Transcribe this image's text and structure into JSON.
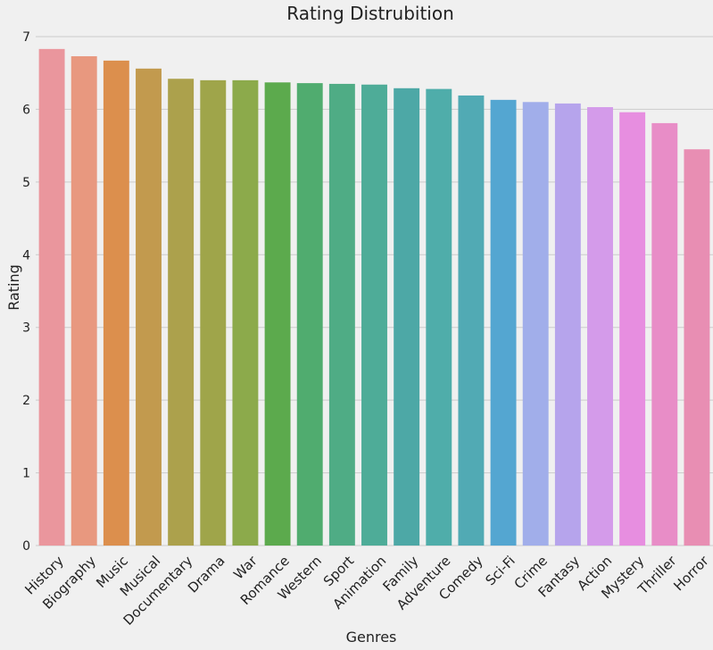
{
  "chart_data": {
    "type": "bar",
    "title": "Rating Distrubition",
    "xlabel": "Genres",
    "ylabel": "Rating",
    "ylim": [
      0,
      7
    ],
    "yticks": [
      "0",
      "1",
      "2",
      "3",
      "4",
      "5",
      "6",
      "7"
    ],
    "grid": true,
    "categories": [
      "History",
      "Biography",
      "Music",
      "Musical",
      "Documentary",
      "Drama",
      "War",
      "Romance",
      "Western",
      "Sport",
      "Animation",
      "Family",
      "Adventure",
      "Comedy",
      "Sci-Fi",
      "Crime",
      "Fantasy",
      "Action",
      "Mystery",
      "Thriller",
      "Horror"
    ],
    "values": [
      6.83,
      6.73,
      6.67,
      6.56,
      6.42,
      6.4,
      6.4,
      6.37,
      6.36,
      6.35,
      6.34,
      6.29,
      6.28,
      6.19,
      6.13,
      6.1,
      6.08,
      6.03,
      5.96,
      5.81,
      5.45
    ],
    "colors": [
      "#ea969d",
      "#e8987f",
      "#dc8f4d",
      "#c29a4e",
      "#aca14c",
      "#9fa54a",
      "#8caa4b",
      "#5caa4d",
      "#50ac6f",
      "#4fac85",
      "#4eac98",
      "#4da8a6",
      "#4fadaa",
      "#51aab4",
      "#54a6d1",
      "#a1aeea",
      "#b6a4ec",
      "#d49bea",
      "#e78ee0",
      "#e88dc7",
      "#e88eb3"
    ]
  }
}
